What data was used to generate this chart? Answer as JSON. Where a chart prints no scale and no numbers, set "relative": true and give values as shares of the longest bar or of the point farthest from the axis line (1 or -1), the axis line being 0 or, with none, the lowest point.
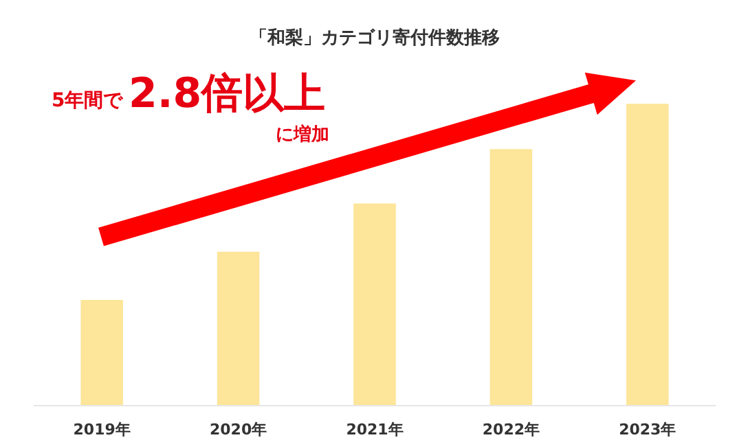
{
  "chart_data": {
    "type": "bar",
    "title": "「和梨」カテゴリ寄付件数推移",
    "categories": [
      "2019年",
      "2020年",
      "2021年",
      "2022年",
      "2023年"
    ],
    "values": [
      0.35,
      0.51,
      0.67,
      0.85,
      1
    ],
    "color": "#fde599",
    "relative": true,
    "grid": false,
    "tick_labels": "x",
    "annotations": [
      "5年間で",
      "2.8倍以上",
      "に増加"
    ]
  }
}
